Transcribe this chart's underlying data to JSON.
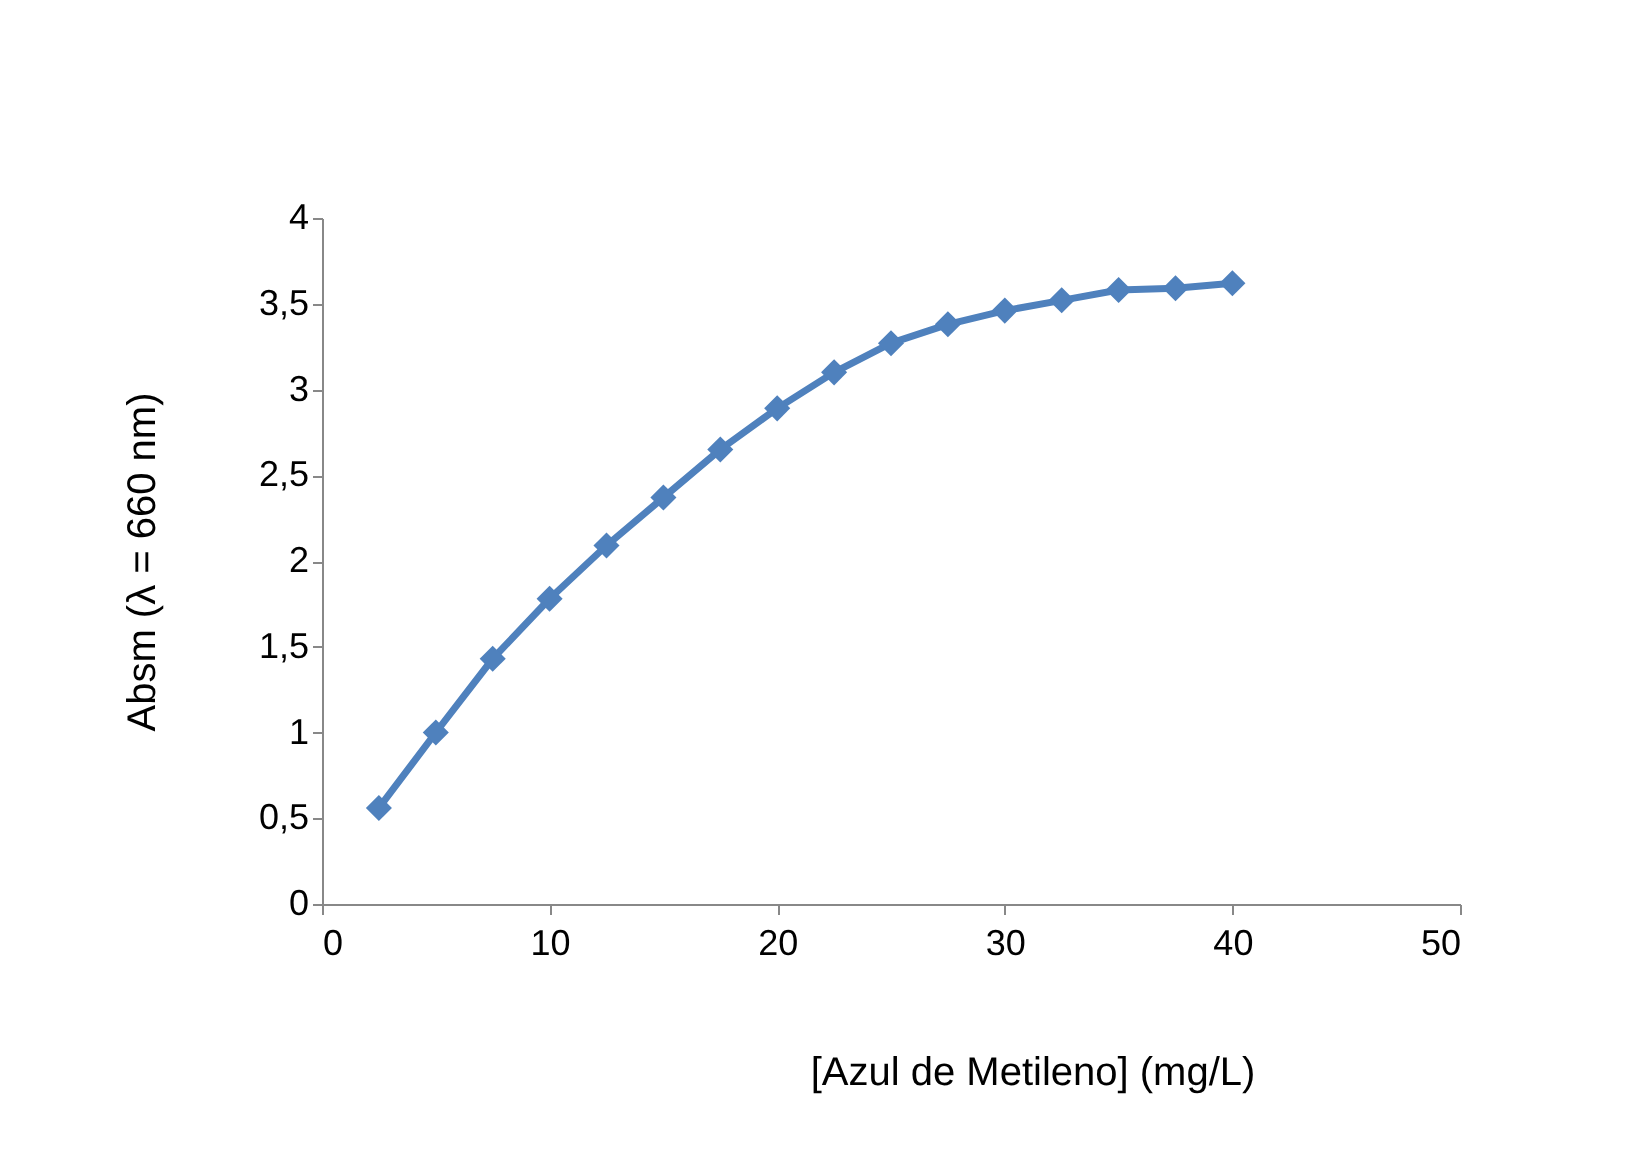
{
  "chart_data": {
    "type": "line",
    "xlabel": "[Azul de Metileno] (mg/L)",
    "ylabel": "Absm (λ = 660 nm)",
    "x": [
      2.5,
      5,
      7.5,
      10,
      12.5,
      15,
      17.5,
      20,
      22.5,
      25,
      27.5,
      30,
      32.5,
      35,
      37.5,
      40
    ],
    "series": [
      {
        "color": "#4f81bd",
        "values": [
          0.56,
          1.0,
          1.43,
          1.78,
          2.09,
          2.37,
          2.65,
          2.89,
          3.1,
          3.27,
          3.38,
          3.46,
          3.52,
          3.58,
          3.59,
          3.62
        ]
      }
    ],
    "xlim": [
      0,
      50
    ],
    "xticks": [
      0,
      10,
      20,
      30,
      40,
      50
    ],
    "ylim": [
      0,
      4
    ],
    "yticks": [
      0,
      {
        "value": 0.5,
        "label": "0,5"
      },
      1,
      {
        "value": 1.5,
        "label": "1,5"
      },
      2,
      {
        "value": 2.5,
        "label": "2,5"
      },
      3,
      {
        "value": 3.5,
        "label": "3,5"
      },
      4
    ],
    "marker": "diamond",
    "line_style": "solid",
    "grid": false
  }
}
